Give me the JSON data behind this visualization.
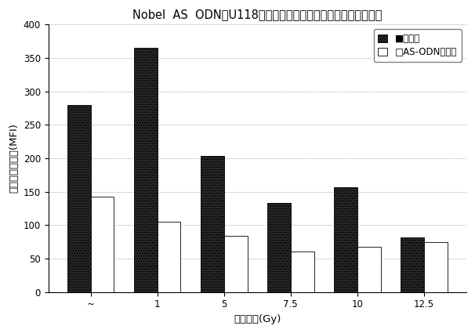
{
  "title": "Nobel  AS  ODNはU118神経膚腫細胞を照射に対して感作ささる",
  "xlabel": "照射線量(Gy)",
  "ylabel": "中央値蛍光強度(MFI)",
  "categories": [
    "~",
    "1",
    "5",
    "7.5",
    "10",
    "12.5"
  ],
  "untreated": [
    280,
    365,
    203,
    133,
    157,
    82
  ],
  "as_odn": [
    143,
    105,
    84,
    60,
    68,
    75
  ],
  "bar_color_untreated": "#2a2a2a",
  "bar_color_asodn": "#ffffff",
  "ylim": [
    0,
    400
  ],
  "yticks": [
    0,
    50,
    100,
    150,
    200,
    250,
    300,
    350,
    400
  ],
  "legend_label_1": "■非治療",
  "legend_label_2": "□AS-ODNで治療",
  "bar_width": 0.35,
  "title_fontsize": 10.5,
  "axis_fontsize": 9.5,
  "tick_fontsize": 8.5,
  "legend_fontsize": 8.5,
  "background_color": "#ffffff",
  "grid_color": "#999999",
  "figure_bg": "#ffffff"
}
